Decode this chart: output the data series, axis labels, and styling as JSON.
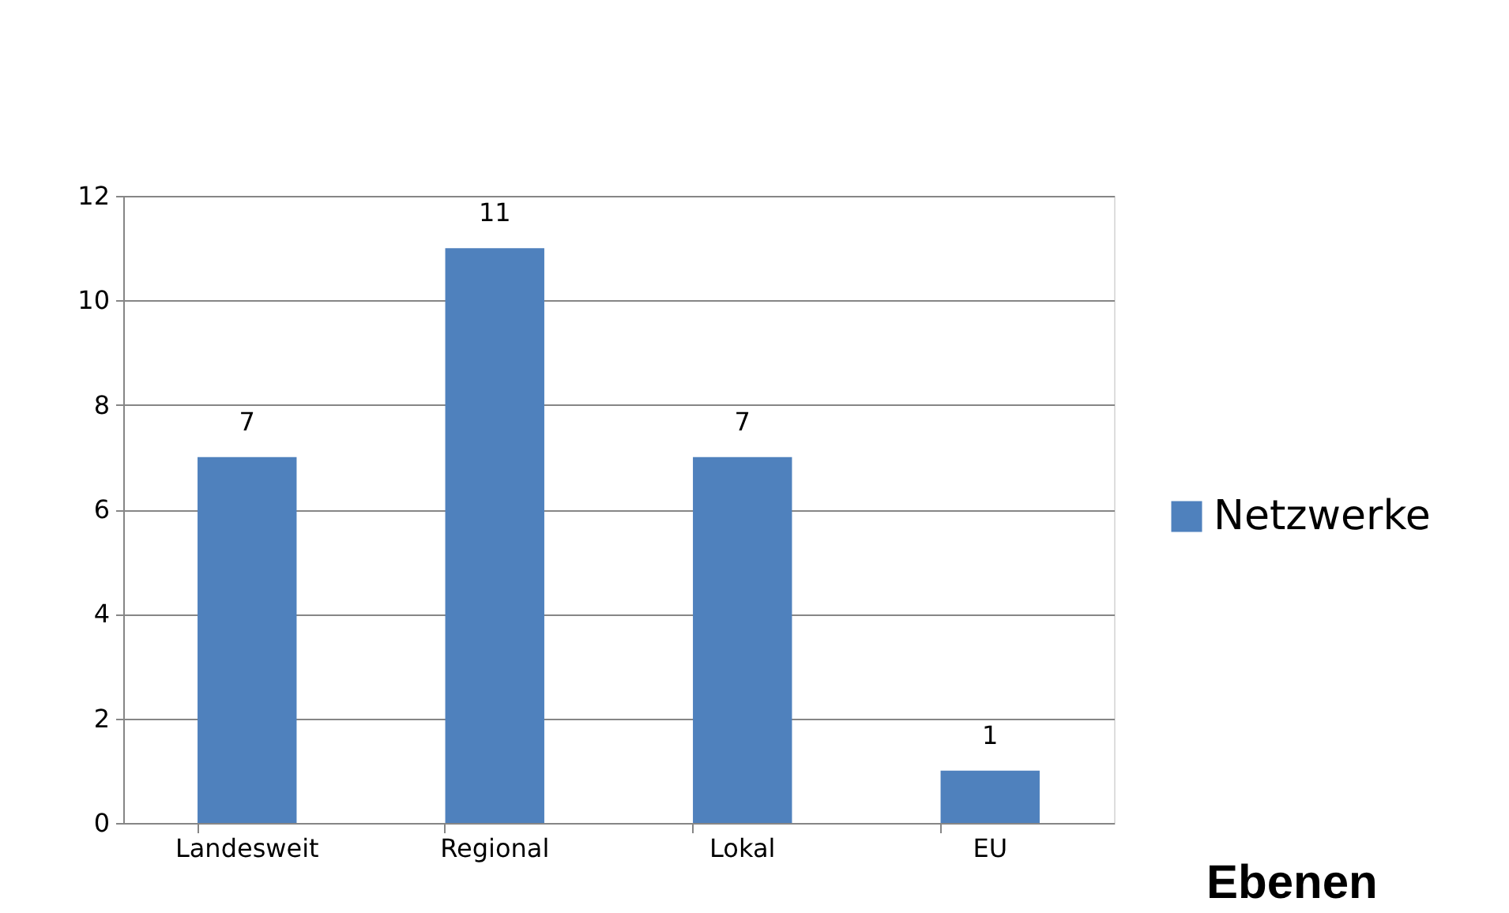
{
  "chart_data": {
    "type": "bar",
    "xlabel": "Ebenen",
    "categories": [
      "Landesweit",
      "Regional",
      "Lokal",
      "EU"
    ],
    "series": [
      {
        "name": "Netzwerke",
        "color": "#4f81bd",
        "values": [
          7,
          11,
          7,
          1
        ]
      }
    ],
    "ylim": [
      0,
      12
    ],
    "yticks": [
      0,
      2,
      4,
      6,
      8,
      10,
      12
    ],
    "grid": "y",
    "legend": "right",
    "data_labels": true
  }
}
